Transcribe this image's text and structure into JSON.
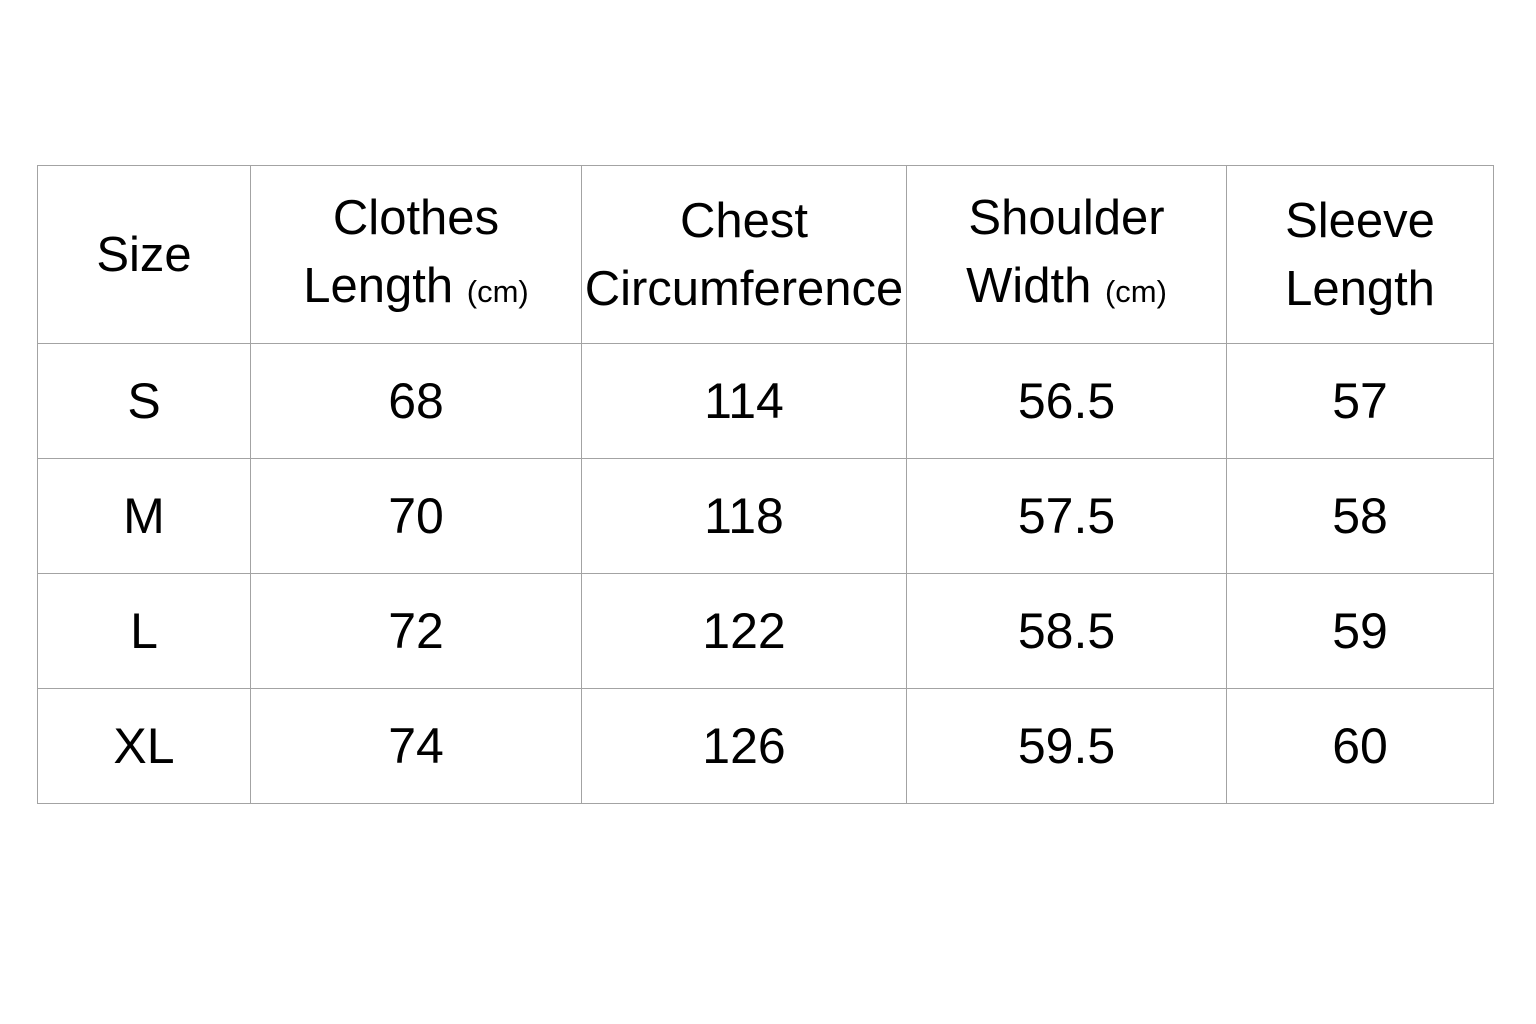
{
  "table": {
    "headers": [
      {
        "line1": "Size",
        "line2": "",
        "unit": ""
      },
      {
        "line1": "Clothes",
        "line2": "Length",
        "unit": "(cm)"
      },
      {
        "line1": "Chest",
        "line2": "Circumference",
        "unit": ""
      },
      {
        "line1": "Shoulder",
        "line2": "Width",
        "unit": "(cm)"
      },
      {
        "line1": "Sleeve",
        "line2": "Length",
        "unit": ""
      }
    ],
    "rows": [
      [
        "S",
        "68",
        "114",
        "56.5",
        "57"
      ],
      [
        "M",
        "70",
        "118",
        "57.5",
        "58"
      ],
      [
        "L",
        "72",
        "122",
        "58.5",
        "59"
      ],
      [
        "XL",
        "74",
        "126",
        "59.5",
        "60"
      ]
    ]
  }
}
